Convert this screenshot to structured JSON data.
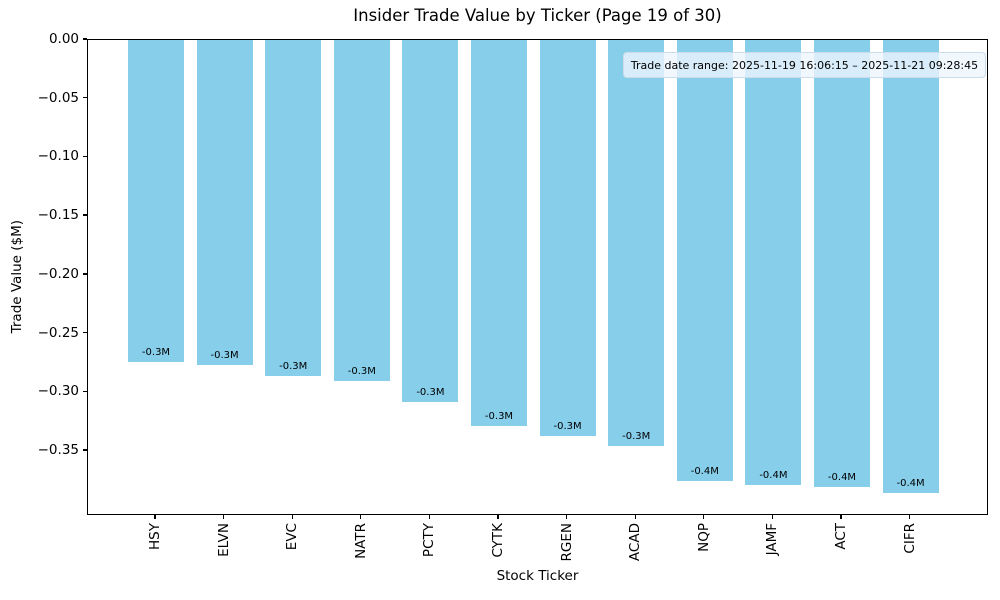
{
  "figure": {
    "title": "Insider Trade Value by Ticker (Page 19 of 30)",
    "xlabel": "Stock Ticker",
    "ylabel": "Trade Value ($M)",
    "annotation": "Trade date range: 2025-11-19 16:06:15 – 2025-11-21 09:28:45"
  },
  "chart_data": {
    "type": "bar",
    "title": "Insider Trade Value by Ticker (Page 19 of 30)",
    "xlabel": "Stock Ticker",
    "ylabel": "Trade Value ($M)",
    "categories": [
      "HSY",
      "ELVN",
      "EVC",
      "NATR",
      "PCTY",
      "CYTK",
      "RGEN",
      "ACAD",
      "NQP",
      "JAMF",
      "ACT",
      "CIFR"
    ],
    "values": [
      -0.274,
      -0.277,
      -0.286,
      -0.29,
      -0.308,
      -0.329,
      -0.337,
      -0.346,
      -0.376,
      -0.379,
      -0.381,
      -0.386
    ],
    "bar_labels": [
      "-0.3M",
      "-0.3M",
      "-0.3M",
      "-0.3M",
      "-0.3M",
      "-0.3M",
      "-0.3M",
      "-0.3M",
      "-0.4M",
      "-0.4M",
      "-0.4M",
      "-0.4M"
    ],
    "ytick_labels": [
      "0.00",
      "−0.05",
      "−0.10",
      "−0.15",
      "−0.20",
      "−0.25",
      "−0.30",
      "−0.35"
    ],
    "ytick_values": [
      0.0,
      -0.05,
      -0.1,
      -0.15,
      -0.2,
      -0.25,
      -0.3,
      -0.35
    ],
    "ylim": [
      -0.4054,
      0.0
    ],
    "bar_color": "#87CEEB",
    "grid": false,
    "legend": null,
    "annotation": "Trade date range: 2025-11-19 16:06:15 – 2025-11-21 09:28:45"
  }
}
